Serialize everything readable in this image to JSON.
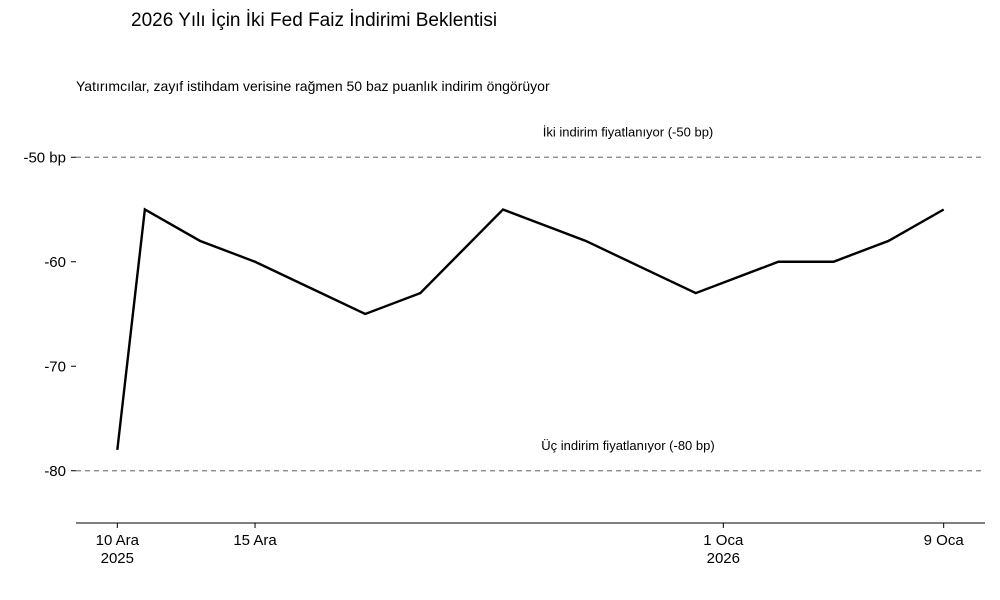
{
  "chart_data": {
    "type": "line",
    "title": "2026 Yılı İçin İki Fed Faiz İndirimi Beklentisi",
    "subtitle": "Yatırımcılar, zayıf istihdam verisine rağmen 50 baz puanlık indirim öngörüyor",
    "xlabel": "",
    "ylabel": "",
    "x": [
      "2025-12-10",
      "2025-12-11",
      "2025-12-13",
      "2025-12-15",
      "2025-12-17",
      "2025-12-19",
      "2025-12-21",
      "2025-12-24",
      "2025-12-27",
      "2025-12-31",
      "2026-01-03",
      "2026-01-05",
      "2026-01-07",
      "2026-01-09"
    ],
    "series": [
      {
        "values": [
          -78,
          -55,
          -58,
          -60,
          -62.5,
          -65,
          -63,
          -55,
          -58,
          -63,
          -60,
          -60,
          -58,
          -55
        ]
      }
    ],
    "xlim": [
      "2025-12-08T12:00",
      "2026-01-10T12:00"
    ],
    "ylim": [
      -85,
      -45
    ],
    "y_ticks": [
      {
        "value": -50,
        "label": "-50 bp"
      },
      {
        "value": -60,
        "label": "-60"
      },
      {
        "value": -70,
        "label": "-70"
      },
      {
        "value": -80,
        "label": "-80"
      }
    ],
    "x_ticks": [
      {
        "date": "2025-12-10",
        "label": "10 Ara",
        "label2": "2025"
      },
      {
        "date": "2025-12-15",
        "label": "15 Ara",
        "label2": ""
      },
      {
        "date": "2026-01-01",
        "label": "1 Oca",
        "label2": "2026"
      },
      {
        "date": "2026-01-09",
        "label": "9 Oca",
        "label2": ""
      }
    ],
    "reference_lines": [
      {
        "value": -50,
        "label": "İki indirim fiyatlanıyor (-50 bp)"
      },
      {
        "value": -80,
        "label": "Üç indirim fiyatlanıyor (-80 bp)"
      }
    ],
    "grid": false,
    "colors": {
      "line": "#000000",
      "reference": "#808080"
    }
  }
}
